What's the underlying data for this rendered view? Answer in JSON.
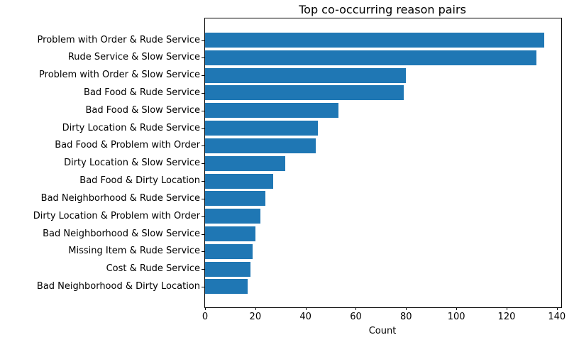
{
  "chart_data": {
    "type": "bar",
    "orientation": "horizontal",
    "title": "Top co-occurring reason pairs",
    "xlabel": "Count",
    "ylabel": "",
    "categories": [
      "Problem with Order & Rude Service",
      "Rude Service & Slow Service",
      "Problem with Order & Slow Service",
      "Bad Food & Rude Service",
      "Bad Food & Slow Service",
      "Dirty Location & Rude Service",
      "Bad Food & Problem with Order",
      "Dirty Location & Slow Service",
      "Bad Food & Dirty Location",
      "Bad Neighborhood & Rude Service",
      "Dirty Location & Problem with Order",
      "Bad Neighborhood & Slow Service",
      "Missing Item & Rude Service",
      "Cost & Rude Service",
      "Bad Neighborhood & Dirty Location"
    ],
    "values": [
      135,
      132,
      80,
      79,
      53,
      45,
      44,
      32,
      27,
      24,
      22,
      20,
      19,
      18,
      17
    ],
    "xlim": [
      0,
      141.75
    ],
    "xticks": [
      0,
      20,
      40,
      60,
      80,
      100,
      120,
      140
    ],
    "bar_color": "#1f77b4",
    "grid": false,
    "legend_position": "none"
  }
}
